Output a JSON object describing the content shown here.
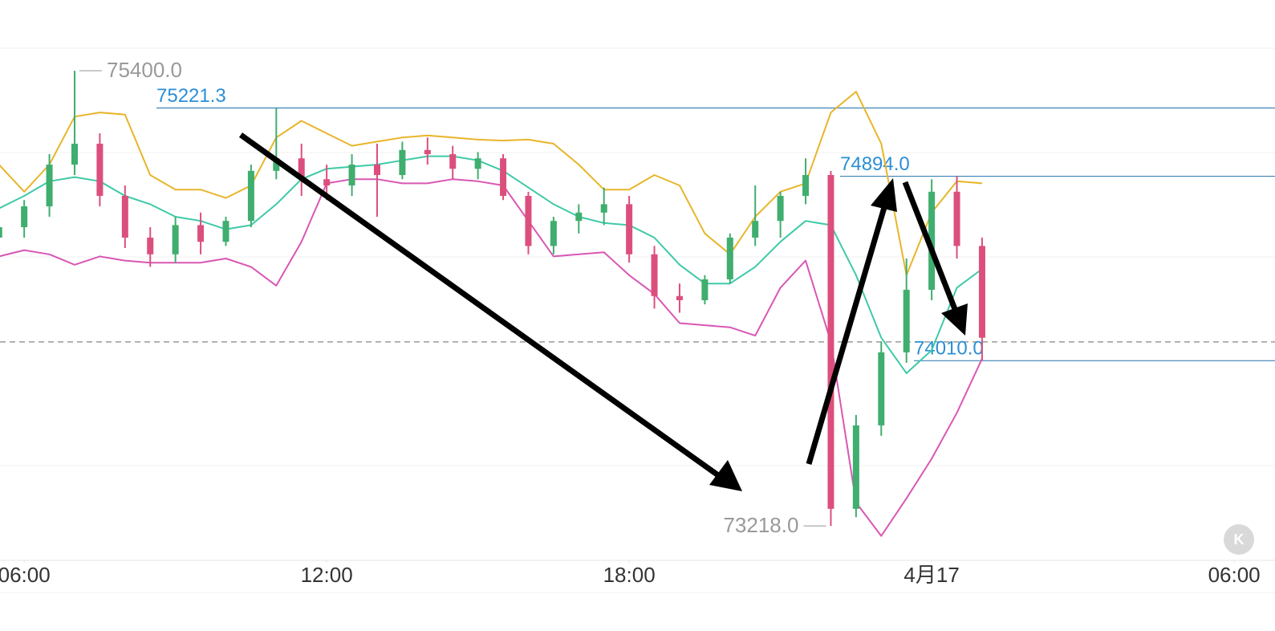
{
  "chart_data": {
    "type": "candlestick",
    "x": [
      5.5,
      6.0,
      6.5,
      7.0,
      7.5,
      8.0,
      8.5,
      9.0,
      9.5,
      10.0,
      10.5,
      11.0,
      11.5,
      12.0,
      12.5,
      13.0,
      13.5,
      14.0,
      14.5,
      15.0,
      15.5,
      16.0,
      16.5,
      17.0,
      17.5,
      18.0,
      18.5,
      19.0,
      19.5,
      20.0,
      20.5,
      21.0,
      21.5,
      22.0,
      22.5,
      23.0,
      23.5,
      24.0,
      24.5,
      25.0
    ],
    "open": [
      74600,
      74650,
      74750,
      74950,
      75050,
      74800,
      74600,
      74520,
      74660,
      74580,
      74680,
      74920,
      74980,
      74880,
      74850,
      74950,
      74900,
      75020,
      75000,
      74930,
      74980,
      74800,
      74560,
      74680,
      74720,
      74760,
      74520,
      74320,
      74300,
      74400,
      74600,
      74680,
      74800,
      74900,
      73300,
      73700,
      74050,
      74350,
      74820,
      74560
    ],
    "high": [
      74700,
      74780,
      75000,
      75400,
      75100,
      74850,
      74650,
      74700,
      74720,
      74700,
      74950,
      75220,
      75050,
      74950,
      75000,
      75050,
      75060,
      75080,
      75040,
      75010,
      75000,
      74820,
      74700,
      74760,
      74840,
      74800,
      74560,
      74380,
      74420,
      74620,
      74850,
      74820,
      74980,
      74920,
      73750,
      74100,
      74500,
      74880,
      74894,
      74600
    ],
    "low": [
      74560,
      74600,
      74700,
      74900,
      74750,
      74550,
      74460,
      74480,
      74520,
      74560,
      74650,
      74880,
      74800,
      74780,
      74800,
      74700,
      74880,
      74950,
      74880,
      74880,
      74780,
      74520,
      74520,
      74620,
      74660,
      74480,
      74260,
      74240,
      74280,
      74380,
      74560,
      74600,
      74760,
      73218,
      73260,
      73650,
      74000,
      74300,
      74500,
      74010
    ],
    "close": [
      74650,
      74750,
      74950,
      75050,
      74800,
      74600,
      74520,
      74660,
      74580,
      74680,
      74920,
      74980,
      74880,
      74850,
      74950,
      74900,
      75020,
      75000,
      74930,
      74980,
      74800,
      74560,
      74680,
      74720,
      74760,
      74520,
      74320,
      74300,
      74400,
      74600,
      74680,
      74800,
      74900,
      73300,
      73700,
      74050,
      74350,
      74820,
      74560,
      74120
    ],
    "up_color": "#3fae6e",
    "down_color": "#dc4f7c",
    "bands": [
      {
        "color": "#e8b52a",
        "values": [
          74950,
          74820,
          74950,
          75180,
          75200,
          75190,
          74900,
          74830,
          74830,
          74790,
          74850,
          75080,
          75160,
          75100,
          75040,
          75060,
          75080,
          75090,
          75080,
          75070,
          75065,
          75070,
          75050,
          74950,
          74830,
          74830,
          74900,
          74850,
          74620,
          74520,
          74700,
          74820,
          74860,
          75200,
          75300,
          75050,
          74420,
          74720,
          74870,
          74860
        ]
      },
      {
        "color": "#3ec9a7",
        "values": [
          74740,
          74800,
          74870,
          74890,
          74870,
          74800,
          74760,
          74700,
          74680,
          74640,
          74660,
          74760,
          74880,
          74930,
          74940,
          74950,
          74970,
          74990,
          74990,
          74970,
          74920,
          74840,
          74760,
          74700,
          74670,
          74660,
          74600,
          74470,
          74380,
          74380,
          74460,
          74580,
          74680,
          74660,
          74420,
          74120,
          73950,
          74060,
          74360,
          74450
        ]
      },
      {
        "color": "#d957b4",
        "values": [
          74510,
          74540,
          74520,
          74470,
          74510,
          74490,
          74480,
          74480,
          74480,
          74500,
          74460,
          74370,
          74580,
          74860,
          74880,
          74880,
          74860,
          74860,
          74880,
          74870,
          74850,
          74680,
          74510,
          74520,
          74530,
          74420,
          74330,
          74190,
          74180,
          74170,
          74130,
          74360,
          74490,
          74100,
          73330,
          73170,
          73350,
          73540,
          73760,
          74020
        ]
      }
    ],
    "xlim": [
      5.52,
      30.81
    ],
    "ylim": [
      73053,
      75739
    ],
    "xticks": [
      {
        "value": 6,
        "label": "06:00"
      },
      {
        "value": 12,
        "label": "12:00"
      },
      {
        "value": 18,
        "label": "18:00"
      },
      {
        "value": 24,
        "label": "4月17"
      },
      {
        "value": 30,
        "label": "06:00"
      }
    ],
    "levels": [
      {
        "value": 75221.3,
        "label": "75221.3"
      },
      {
        "value": 74894,
        "label": "74894.0"
      },
      {
        "value": 74010,
        "label": "74010.0"
      }
    ],
    "extremes": [
      {
        "value": 75400,
        "label": "75400.0"
      },
      {
        "value": 73218,
        "label": "73218.0"
      }
    ],
    "price_line": 74100
  },
  "button_label": "K"
}
